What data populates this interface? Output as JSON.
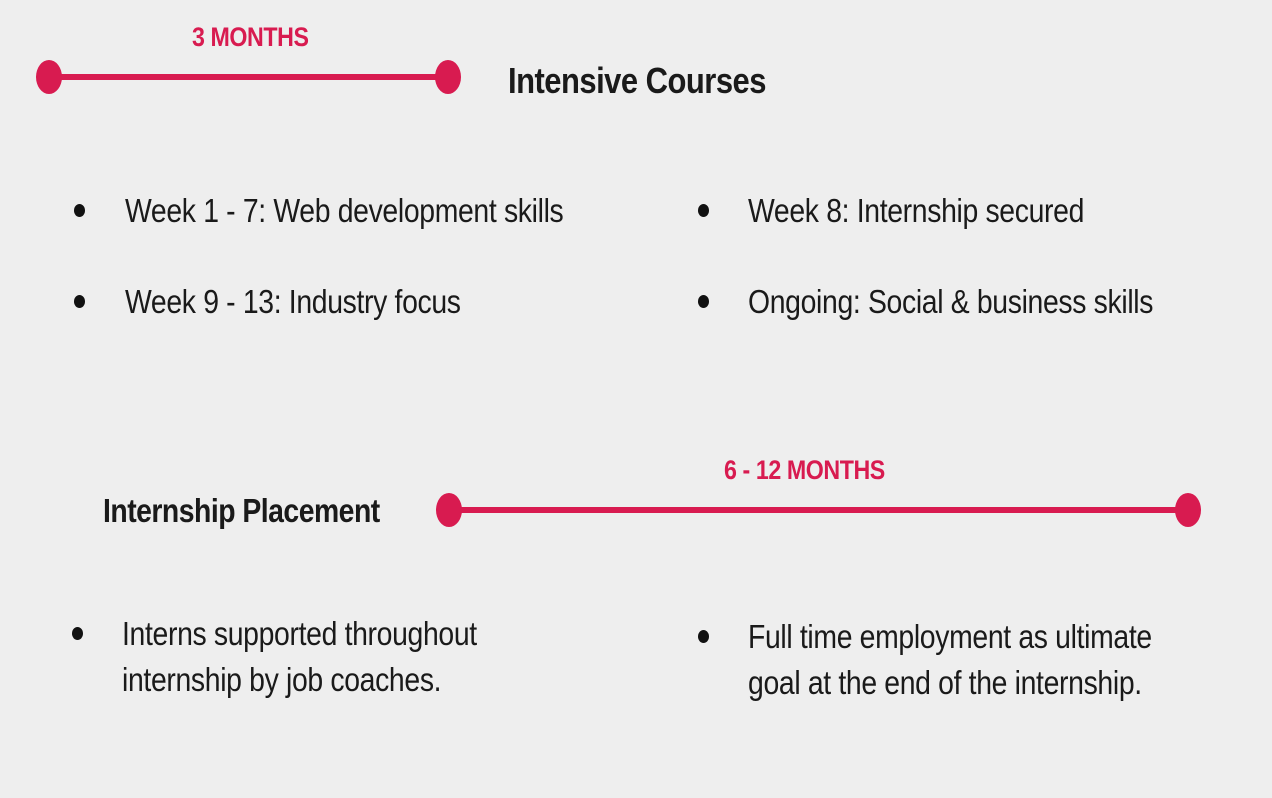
{
  "colors": {
    "accent": "#d81b50",
    "background": "#eeeeee",
    "text": "#1a1a1a"
  },
  "phase1": {
    "duration": "3 MONTHS",
    "title": "Intensive Courses",
    "bullets": [
      "Week 1 - 7: Web development skills",
      "Week 9 - 13: Industry focus",
      "Week 8: Internship secured",
      "Ongoing: Social & business skills"
    ]
  },
  "phase2": {
    "duration": "6 - 12 MONTHS",
    "title": "Internship Placement",
    "bullets": [
      {
        "line1": "Interns supported throughout",
        "line2": "internship by job coaches."
      },
      {
        "line1": "Full time employment as ultimate",
        "line2": "goal at the end of the internship."
      }
    ]
  }
}
